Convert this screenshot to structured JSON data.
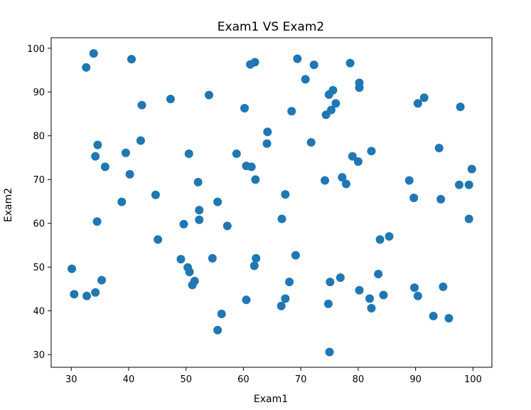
{
  "chart_data": {
    "type": "scatter",
    "title": "Exam1 VS Exam2",
    "xlabel": "Exam1",
    "ylabel": "Exam2",
    "xlim": [
      26.5,
      103.3
    ],
    "ylim": [
      27.1,
      102.4
    ],
    "xticks": [
      30,
      40,
      50,
      60,
      70,
      80,
      90,
      100
    ],
    "yticks": [
      30,
      40,
      50,
      60,
      70,
      80,
      90,
      100
    ],
    "marker_color": "#1f77b4",
    "grid": false,
    "points": [
      {
        "x": 32.6,
        "y": 95.6
      },
      {
        "x": 33.9,
        "y": 98.8
      },
      {
        "x": 40.5,
        "y": 97.5
      },
      {
        "x": 42.3,
        "y": 87.0
      },
      {
        "x": 47.3,
        "y": 88.4
      },
      {
        "x": 54.0,
        "y": 89.3
      },
      {
        "x": 61.2,
        "y": 96.3
      },
      {
        "x": 62.0,
        "y": 96.8
      },
      {
        "x": 69.4,
        "y": 97.6
      },
      {
        "x": 72.3,
        "y": 96.2
      },
      {
        "x": 78.6,
        "y": 96.6
      },
      {
        "x": 70.8,
        "y": 92.9
      },
      {
        "x": 75.6,
        "y": 90.4
      },
      {
        "x": 74.9,
        "y": 89.4
      },
      {
        "x": 80.2,
        "y": 92.1
      },
      {
        "x": 80.2,
        "y": 91.0
      },
      {
        "x": 76.1,
        "y": 87.4
      },
      {
        "x": 75.3,
        "y": 85.9
      },
      {
        "x": 74.4,
        "y": 84.8
      },
      {
        "x": 68.4,
        "y": 85.6
      },
      {
        "x": 60.2,
        "y": 86.3
      },
      {
        "x": 91.5,
        "y": 88.7
      },
      {
        "x": 90.4,
        "y": 87.4
      },
      {
        "x": 97.8,
        "y": 86.6
      },
      {
        "x": 64.2,
        "y": 80.9
      },
      {
        "x": 64.1,
        "y": 78.2
      },
      {
        "x": 71.8,
        "y": 78.5
      },
      {
        "x": 34.6,
        "y": 77.9
      },
      {
        "x": 34.2,
        "y": 75.3
      },
      {
        "x": 35.9,
        "y": 72.9
      },
      {
        "x": 39.5,
        "y": 76.1
      },
      {
        "x": 42.1,
        "y": 78.9
      },
      {
        "x": 40.2,
        "y": 71.2
      },
      {
        "x": 50.5,
        "y": 75.9
      },
      {
        "x": 58.8,
        "y": 75.9
      },
      {
        "x": 60.5,
        "y": 73.1
      },
      {
        "x": 61.4,
        "y": 72.9
      },
      {
        "x": 62.1,
        "y": 70.0
      },
      {
        "x": 52.1,
        "y": 69.4
      },
      {
        "x": 79.0,
        "y": 75.3
      },
      {
        "x": 82.3,
        "y": 76.5
      },
      {
        "x": 80.0,
        "y": 74.1
      },
      {
        "x": 77.2,
        "y": 70.5
      },
      {
        "x": 77.9,
        "y": 69.0
      },
      {
        "x": 74.2,
        "y": 69.8
      },
      {
        "x": 94.1,
        "y": 77.2
      },
      {
        "x": 99.8,
        "y": 72.4
      },
      {
        "x": 88.9,
        "y": 69.8
      },
      {
        "x": 97.6,
        "y": 68.8
      },
      {
        "x": 99.3,
        "y": 68.8
      },
      {
        "x": 89.7,
        "y": 65.8
      },
      {
        "x": 94.4,
        "y": 65.5
      },
      {
        "x": 99.3,
        "y": 61.0
      },
      {
        "x": 44.7,
        "y": 66.5
      },
      {
        "x": 38.8,
        "y": 64.9
      },
      {
        "x": 34.5,
        "y": 60.4
      },
      {
        "x": 55.5,
        "y": 64.9
      },
      {
        "x": 52.3,
        "y": 63.0
      },
      {
        "x": 52.3,
        "y": 60.8
      },
      {
        "x": 49.6,
        "y": 59.8
      },
      {
        "x": 57.2,
        "y": 59.4
      },
      {
        "x": 67.3,
        "y": 66.6
      },
      {
        "x": 66.7,
        "y": 61.0
      },
      {
        "x": 45.1,
        "y": 56.3
      },
      {
        "x": 85.4,
        "y": 57.0
      },
      {
        "x": 83.8,
        "y": 56.3
      },
      {
        "x": 69.1,
        "y": 52.7
      },
      {
        "x": 62.2,
        "y": 52.0
      },
      {
        "x": 61.9,
        "y": 50.3
      },
      {
        "x": 54.6,
        "y": 52.0
      },
      {
        "x": 49.1,
        "y": 51.8
      },
      {
        "x": 50.3,
        "y": 49.9
      },
      {
        "x": 50.6,
        "y": 48.9
      },
      {
        "x": 51.5,
        "y": 46.8
      },
      {
        "x": 51.1,
        "y": 45.9
      },
      {
        "x": 30.1,
        "y": 49.6
      },
      {
        "x": 30.5,
        "y": 43.8
      },
      {
        "x": 32.7,
        "y": 43.4
      },
      {
        "x": 34.2,
        "y": 44.2
      },
      {
        "x": 35.3,
        "y": 47.0
      },
      {
        "x": 68.0,
        "y": 46.6
      },
      {
        "x": 75.1,
        "y": 46.6
      },
      {
        "x": 76.9,
        "y": 47.6
      },
      {
        "x": 83.5,
        "y": 48.4
      },
      {
        "x": 80.2,
        "y": 44.7
      },
      {
        "x": 84.4,
        "y": 43.6
      },
      {
        "x": 82.0,
        "y": 42.8
      },
      {
        "x": 82.3,
        "y": 40.6
      },
      {
        "x": 74.8,
        "y": 41.6
      },
      {
        "x": 67.3,
        "y": 42.8
      },
      {
        "x": 66.6,
        "y": 41.1
      },
      {
        "x": 60.5,
        "y": 42.5
      },
      {
        "x": 56.2,
        "y": 39.3
      },
      {
        "x": 55.5,
        "y": 35.6
      },
      {
        "x": 89.8,
        "y": 45.3
      },
      {
        "x": 90.4,
        "y": 43.4
      },
      {
        "x": 94.8,
        "y": 45.5
      },
      {
        "x": 93.1,
        "y": 38.8
      },
      {
        "x": 95.8,
        "y": 38.3
      },
      {
        "x": 75.0,
        "y": 30.6
      }
    ]
  }
}
